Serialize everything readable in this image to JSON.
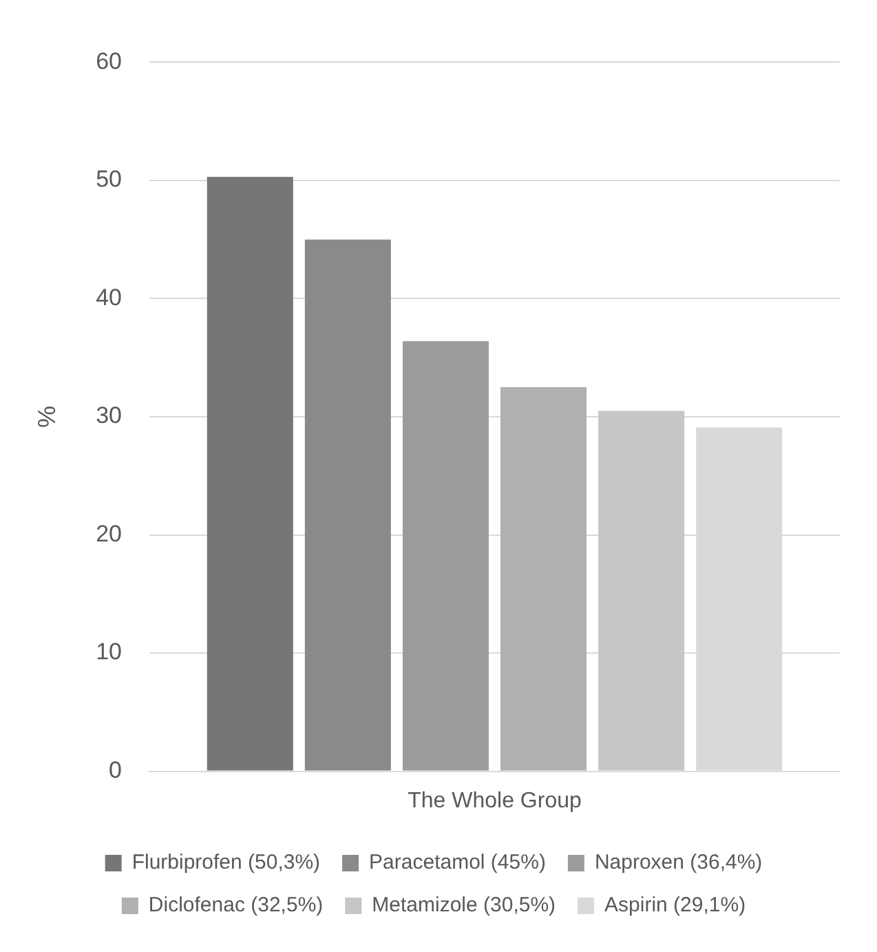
{
  "chart_data": {
    "type": "bar",
    "ylabel": "%",
    "categories": [
      "The Whole Group"
    ],
    "series": [
      {
        "name": "Flurbiprofen (50,3%)",
        "color": "#767676",
        "values": [
          50.3
        ]
      },
      {
        "name": "Paracetamol (45%)",
        "color": "#8a8a8a",
        "values": [
          45
        ]
      },
      {
        "name": "Naproxen (36,4%)",
        "color": "#9c9c9c",
        "values": [
          36.4
        ]
      },
      {
        "name": "Diclofenac (32,5%)",
        "color": "#b0b0b0",
        "values": [
          32.5
        ]
      },
      {
        "name": "Metamizole (30,5%)",
        "color": "#c6c6c6",
        "values": [
          30.5
        ]
      },
      {
        "name": "Aspirin (29,1%)",
        "color": "#d9d9d9",
        "values": [
          29.1
        ]
      }
    ],
    "ylim": [
      0,
      60
    ],
    "yticks": [
      0,
      10,
      20,
      30,
      40,
      50,
      60
    ],
    "grid": "y",
    "legend": "bottom"
  }
}
